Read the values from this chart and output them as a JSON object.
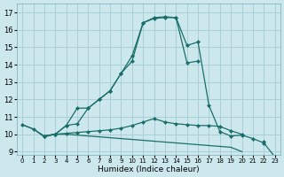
{
  "xlabel": "Humidex (Indice chaleur)",
  "bg_color": "#cce8ed",
  "grid_color": "#aacfd8",
  "line_color": "#1a6e6a",
  "line1_x": [
    0,
    1,
    2,
    3,
    4,
    5,
    6,
    7,
    8,
    9,
    10,
    11,
    12,
    13,
    14,
    15,
    16,
    17,
    18,
    19,
    20,
    21,
    22,
    23
  ],
  "line1_y": [
    10.55,
    10.3,
    9.9,
    10.0,
    10.05,
    10.1,
    10.15,
    10.2,
    10.25,
    10.35,
    10.5,
    10.7,
    10.9,
    10.7,
    10.6,
    10.55,
    10.5,
    10.5,
    10.45,
    10.2,
    10.0,
    null,
    9.6,
    null
  ],
  "line2_x": [
    0,
    1,
    2,
    3,
    4,
    5,
    6,
    7,
    8,
    9,
    10,
    11,
    12,
    13,
    14,
    15,
    16,
    17,
    18,
    19,
    20,
    21,
    22,
    23
  ],
  "line2_y": [
    10.55,
    10.3,
    9.85,
    10.0,
    10.0,
    9.95,
    9.9,
    9.85,
    9.8,
    9.75,
    9.7,
    9.65,
    9.6,
    9.55,
    9.5,
    9.45,
    9.4,
    9.35,
    9.3,
    9.25,
    9.0,
    null,
    8.75,
    null
  ],
  "line3_x": [
    2,
    3,
    4,
    5,
    6,
    7,
    8,
    9,
    10,
    11,
    12,
    13,
    14,
    15,
    16
  ],
  "line3_y": [
    9.9,
    10.0,
    10.5,
    11.5,
    11.5,
    12.0,
    12.5,
    13.5,
    14.2,
    16.4,
    16.7,
    16.75,
    16.7,
    14.1,
    14.2
  ],
  "line4_x": [
    2,
    3,
    4,
    5,
    6,
    7,
    8,
    9,
    10,
    11,
    12,
    13,
    14,
    15,
    16,
    17,
    18,
    19,
    20,
    21,
    22,
    23
  ],
  "line4_y": [
    9.9,
    10.0,
    10.5,
    10.6,
    11.5,
    12.0,
    12.5,
    13.5,
    14.5,
    16.4,
    16.65,
    16.7,
    16.7,
    15.1,
    15.3,
    11.65,
    10.15,
    9.9,
    9.95,
    9.75,
    9.5,
    8.7
  ],
  "xlim": [
    -0.5,
    23.5
  ],
  "ylim": [
    8.8,
    17.5
  ],
  "yticks": [
    9,
    10,
    11,
    12,
    13,
    14,
    15,
    16,
    17
  ],
  "xticks": [
    0,
    1,
    2,
    3,
    4,
    5,
    6,
    7,
    8,
    9,
    10,
    11,
    12,
    13,
    14,
    15,
    16,
    17,
    18,
    19,
    20,
    21,
    22,
    23
  ]
}
